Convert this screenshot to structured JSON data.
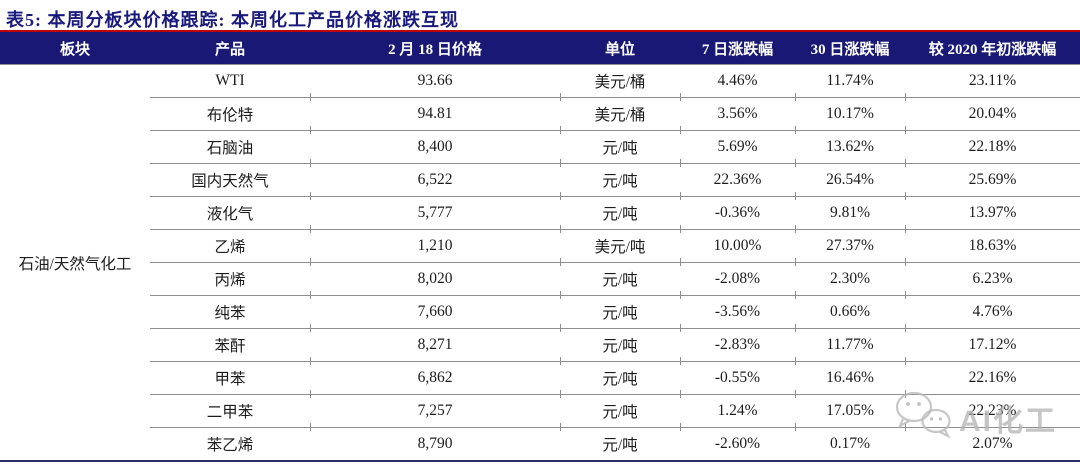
{
  "page": {
    "title": "表5:  本周分板块价格跟踪:  本周化工产品价格涨跌互现",
    "accent_red": "#c00000",
    "header_bg": "#191975",
    "title_color": "#1a1a7c"
  },
  "table": {
    "headers": [
      "板块",
      "产品",
      "2 月 18 日价格",
      "单位",
      "7 日涨跌幅",
      "30 日涨跌幅",
      "较 2020 年初涨跌幅"
    ],
    "sector": "石油/天然气化工",
    "rows": [
      {
        "product": "WTI",
        "price": "93.66",
        "unit": "美元/桶",
        "chg_7d": "4.46%",
        "chg_30d": "11.74%",
        "chg_ytd": "23.11%"
      },
      {
        "product": "布伦特",
        "price": "94.81",
        "unit": "美元/桶",
        "chg_7d": "3.56%",
        "chg_30d": "10.17%",
        "chg_ytd": "20.04%"
      },
      {
        "product": "石脑油",
        "price": "8,400",
        "unit": "元/吨",
        "chg_7d": "5.69%",
        "chg_30d": "13.62%",
        "chg_ytd": "22.18%"
      },
      {
        "product": "国内天然气",
        "price": "6,522",
        "unit": "元/吨",
        "chg_7d": "22.36%",
        "chg_30d": "26.54%",
        "chg_ytd": "25.69%"
      },
      {
        "product": "液化气",
        "price": "5,777",
        "unit": "元/吨",
        "chg_7d": "-0.36%",
        "chg_30d": "9.81%",
        "chg_ytd": "13.97%"
      },
      {
        "product": "乙烯",
        "price": "1,210",
        "unit": "美元/吨",
        "chg_7d": "10.00%",
        "chg_30d": "27.37%",
        "chg_ytd": "18.63%"
      },
      {
        "product": "丙烯",
        "price": "8,020",
        "unit": "元/吨",
        "chg_7d": "-2.08%",
        "chg_30d": "2.30%",
        "chg_ytd": "6.23%"
      },
      {
        "product": "纯苯",
        "price": "7,660",
        "unit": "元/吨",
        "chg_7d": "-3.56%",
        "chg_30d": "0.66%",
        "chg_ytd": "4.76%"
      },
      {
        "product": "苯酐",
        "price": "8,271",
        "unit": "元/吨",
        "chg_7d": "-2.83%",
        "chg_30d": "11.77%",
        "chg_ytd": "17.12%"
      },
      {
        "product": "甲苯",
        "price": "6,862",
        "unit": "元/吨",
        "chg_7d": "-0.55%",
        "chg_30d": "16.46%",
        "chg_ytd": "22.16%"
      },
      {
        "product": "二甲苯",
        "price": "7,257",
        "unit": "元/吨",
        "chg_7d": "1.24%",
        "chg_30d": "17.05%",
        "chg_ytd": "22.23%"
      },
      {
        "product": "苯乙烯",
        "price": "8,790",
        "unit": "元/吨",
        "chg_7d": "-2.60%",
        "chg_30d": "0.17%",
        "chg_ytd": "2.07%"
      }
    ]
  },
  "chart_data": {
    "type": "table",
    "title": "表5: 本周分板块价格跟踪: 本周化工产品价格涨跌互现",
    "columns": [
      "板块",
      "产品",
      "2 月 18 日价格",
      "单位",
      "7 日涨跌幅",
      "30 日涨跌幅",
      "较 2020 年初涨跌幅"
    ],
    "rows": [
      [
        "石油/天然气化工",
        "WTI",
        93.66,
        "美元/桶",
        "4.46%",
        "11.74%",
        "23.11%"
      ],
      [
        "石油/天然气化工",
        "布伦特",
        94.81,
        "美元/桶",
        "3.56%",
        "10.17%",
        "20.04%"
      ],
      [
        "石油/天然气化工",
        "石脑油",
        8400,
        "元/吨",
        "5.69%",
        "13.62%",
        "22.18%"
      ],
      [
        "石油/天然气化工",
        "国内天然气",
        6522,
        "元/吨",
        "22.36%",
        "26.54%",
        "25.69%"
      ],
      [
        "石油/天然气化工",
        "液化气",
        5777,
        "元/吨",
        "-0.36%",
        "9.81%",
        "13.97%"
      ],
      [
        "石油/天然气化工",
        "乙烯",
        1210,
        "美元/吨",
        "10.00%",
        "27.37%",
        "18.63%"
      ],
      [
        "石油/天然气化工",
        "丙烯",
        8020,
        "元/吨",
        "-2.08%",
        "2.30%",
        "6.23%"
      ],
      [
        "石油/天然气化工",
        "纯苯",
        7660,
        "元/吨",
        "-3.56%",
        "0.66%",
        "4.76%"
      ],
      [
        "石油/天然气化工",
        "苯酐",
        8271,
        "元/吨",
        "-2.83%",
        "11.77%",
        "17.12%"
      ],
      [
        "石油/天然气化工",
        "甲苯",
        6862,
        "元/吨",
        "-0.55%",
        "16.46%",
        "22.16%"
      ],
      [
        "石油/天然气化工",
        "二甲苯",
        7257,
        "元/吨",
        "1.24%",
        "17.05%",
        "22.23%"
      ],
      [
        "石油/天然气化工",
        "苯乙烯",
        8790,
        "元/吨",
        "-2.60%",
        "0.17%",
        "2.07%"
      ]
    ]
  },
  "watermark": {
    "icon": "wechat-icon",
    "text": "AI化工"
  }
}
